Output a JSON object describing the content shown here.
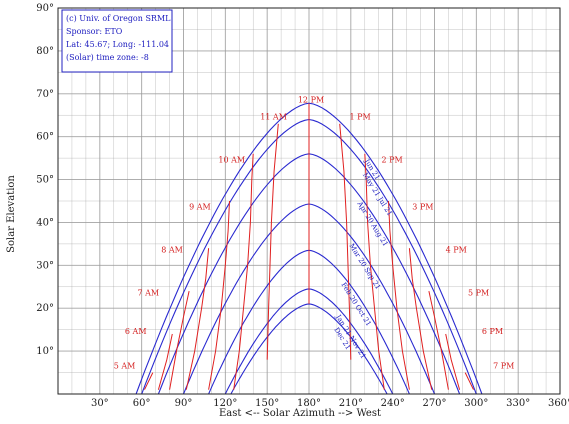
{
  "colors": {
    "grid": "#9a9a9a",
    "date_curve": "#2a2ad0",
    "hour_curve": "#e02020",
    "frame": "#222222",
    "info_border": "#2020c0"
  },
  "info_box": {
    "line1": "(c) Univ. of Oregon SRML",
    "line2": "Sponsor: ETO",
    "line3": "Lat: 45.67; Long: -111.04",
    "line4": "(Solar) time zone: -8"
  },
  "chart_data": {
    "type": "line",
    "title": "",
    "xlabel": "East <-- Solar Azimuth --> West",
    "ylabel": "Solar Elevation",
    "xlim": [
      0,
      360
    ],
    "ylim": [
      0,
      90
    ],
    "grid": true,
    "x_ticks": [
      "30°",
      "60°",
      "90°",
      "120°",
      "150°",
      "180°",
      "210°",
      "240°",
      "270°",
      "300°",
      "330°",
      "360°"
    ],
    "y_ticks": [
      "10°",
      "20°",
      "30°",
      "40°",
      "50°",
      "60°",
      "70°",
      "80°",
      "90°"
    ],
    "date_curves": [
      {
        "name": "Jun 21",
        "label": "Jun 21",
        "max_elevation": 67.8,
        "azimuth_range": [
          56,
          304
        ]
      },
      {
        "name": "May 21 / Jul 21",
        "label": "May 21 Jul 21",
        "max_elevation": 64.0,
        "azimuth_range": [
          60,
          300
        ]
      },
      {
        "name": "Apr 20 / Aug 21",
        "label": "Apr 20 Aug 21",
        "max_elevation": 56.0,
        "azimuth_range": [
          72,
          288
        ]
      },
      {
        "name": "Mar 20 / Sep 21",
        "label": "Mar 20 Sep 21",
        "max_elevation": 44.3,
        "azimuth_range": [
          90,
          270
        ]
      },
      {
        "name": "Feb 20 / Oct 21",
        "label": "Feb 20 Oct 21",
        "max_elevation": 33.5,
        "azimuth_range": [
          108,
          252
        ]
      },
      {
        "name": "Jan 21 / Nov 21",
        "label": "Jan 21 Nov 21",
        "max_elevation": 24.5,
        "azimuth_range": [
          120,
          240
        ]
      },
      {
        "name": "Dec 21",
        "label": "Dec 21",
        "max_elevation": 21.0,
        "azimuth_range": [
          124,
          236
        ]
      }
    ],
    "hour_lines": [
      {
        "label": "5 AM",
        "points": [
          [
            62,
            1
          ],
          [
            68,
            5
          ]
        ]
      },
      {
        "label": "6 AM",
        "points": [
          [
            72,
            1
          ],
          [
            78,
            8
          ],
          [
            82,
            14
          ]
        ]
      },
      {
        "label": "7 AM",
        "points": [
          [
            80,
            1
          ],
          [
            85,
            10
          ],
          [
            90,
            18
          ],
          [
            94,
            24
          ]
        ]
      },
      {
        "label": "8 AM",
        "points": [
          [
            92,
            1
          ],
          [
            98,
            10
          ],
          [
            103,
            20
          ],
          [
            106,
            27
          ],
          [
            108,
            34
          ]
        ]
      },
      {
        "label": "9 AM",
        "points": [
          [
            108,
            1
          ],
          [
            113,
            10
          ],
          [
            117,
            20
          ],
          [
            120,
            30
          ],
          [
            122,
            38
          ],
          [
            123,
            45
          ]
        ]
      },
      {
        "label": "10 AM",
        "points": [
          [
            126,
            1
          ],
          [
            130,
            10
          ],
          [
            133,
            20
          ],
          [
            136,
            30
          ],
          [
            138,
            40
          ],
          [
            139,
            50
          ],
          [
            140,
            56
          ]
        ]
      },
      {
        "label": "11 AM",
        "points": [
          [
            150,
            8
          ],
          [
            151,
            20
          ],
          [
            152,
            30
          ],
          [
            153,
            40
          ],
          [
            155,
            52
          ],
          [
            158,
            63
          ]
        ]
      },
      {
        "label": "12 PM",
        "points": [
          [
            180,
            21
          ],
          [
            180,
            67.8
          ]
        ]
      },
      {
        "label": "1 PM",
        "points": [
          [
            210,
            8
          ],
          [
            209,
            20
          ],
          [
            208,
            30
          ],
          [
            207,
            40
          ],
          [
            205,
            52
          ],
          [
            202,
            63
          ]
        ]
      },
      {
        "label": "2 PM",
        "points": [
          [
            234,
            1
          ],
          [
            230,
            10
          ],
          [
            227,
            20
          ],
          [
            224,
            30
          ],
          [
            222,
            40
          ],
          [
            221,
            50
          ],
          [
            220,
            56
          ]
        ]
      },
      {
        "label": "3 PM",
        "points": [
          [
            252,
            1
          ],
          [
            247,
            10
          ],
          [
            243,
            20
          ],
          [
            240,
            30
          ],
          [
            238,
            38
          ],
          [
            237,
            45
          ]
        ]
      },
      {
        "label": "4 PM",
        "points": [
          [
            268,
            1
          ],
          [
            262,
            10
          ],
          [
            257,
            20
          ],
          [
            254,
            27
          ],
          [
            252,
            34
          ]
        ]
      },
      {
        "label": "5 PM",
        "points": [
          [
            280,
            1
          ],
          [
            275,
            10
          ],
          [
            270,
            18
          ],
          [
            266,
            24
          ]
        ]
      },
      {
        "label": "6 PM",
        "points": [
          [
            288,
            1
          ],
          [
            282,
            8
          ],
          [
            278,
            14
          ]
        ]
      },
      {
        "label": "7 PM",
        "points": [
          [
            298,
            1
          ],
          [
            292,
            5
          ]
        ]
      }
    ]
  },
  "hour_label_positions": [
    {
      "label": "5 AM",
      "az": 40,
      "el": 6
    },
    {
      "label": "6 AM",
      "az": 48,
      "el": 14
    },
    {
      "label": "7 AM",
      "az": 57,
      "el": 23
    },
    {
      "label": "8 AM",
      "az": 74,
      "el": 33
    },
    {
      "label": "9 AM",
      "az": 94,
      "el": 43
    },
    {
      "label": "10 AM",
      "az": 115,
      "el": 54
    },
    {
      "label": "11 AM",
      "az": 145,
      "el": 64
    },
    {
      "label": "12 PM",
      "az": 172,
      "el": 68
    },
    {
      "label": "1 PM",
      "az": 209,
      "el": 64
    },
    {
      "label": "2 PM",
      "az": 232,
      "el": 54
    },
    {
      "label": "3 PM",
      "az": 254,
      "el": 43
    },
    {
      "label": "4 PM",
      "az": 278,
      "el": 33
    },
    {
      "label": "5 PM",
      "az": 294,
      "el": 23
    },
    {
      "label": "6 PM",
      "az": 304,
      "el": 14
    },
    {
      "label": "7 PM",
      "az": 312,
      "el": 6
    }
  ]
}
